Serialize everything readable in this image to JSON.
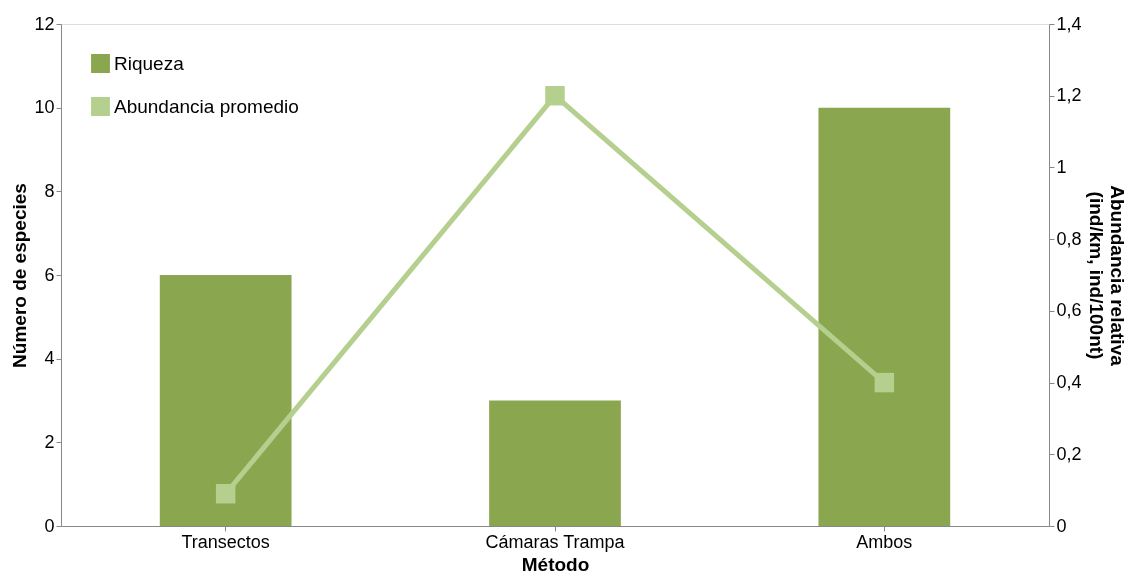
{
  "chart_data": {
    "type": "bar",
    "xlabel": "Método",
    "ylabel": "Número de especies",
    "y2label": [
      "Abundancia relativa",
      "(ind/km, ind/100nt)"
    ],
    "categories": [
      "Transectos",
      "Cámaras Trampa",
      "Ambos"
    ],
    "series": [
      {
        "name": "Riqueza",
        "color": "#8aa64e",
        "values": [
          6,
          3,
          10
        ]
      },
      {
        "name": "Abundancia promedio",
        "type": "line",
        "axis": "y2",
        "color": "#b5cf8e",
        "marker": "square",
        "line_style": "solid",
        "values": [
          0.09,
          1.2,
          0.4
        ]
      }
    ],
    "ylim": [
      0,
      12
    ],
    "yticks": [
      0,
      2,
      4,
      6,
      8,
      10,
      12
    ],
    "y2lim": [
      0,
      1.4
    ],
    "y2ticks": [
      0,
      {
        "value": 0.2,
        "label": "0,2"
      },
      {
        "value": 0.4,
        "label": "0,4"
      },
      {
        "value": 0.6,
        "label": "0,6"
      },
      {
        "value": 0.8,
        "label": "0,8"
      },
      1,
      {
        "value": 1.2,
        "label": "1,2"
      },
      {
        "value": 1.4,
        "label": "1,4"
      }
    ],
    "grid": false,
    "legend": "top left"
  }
}
